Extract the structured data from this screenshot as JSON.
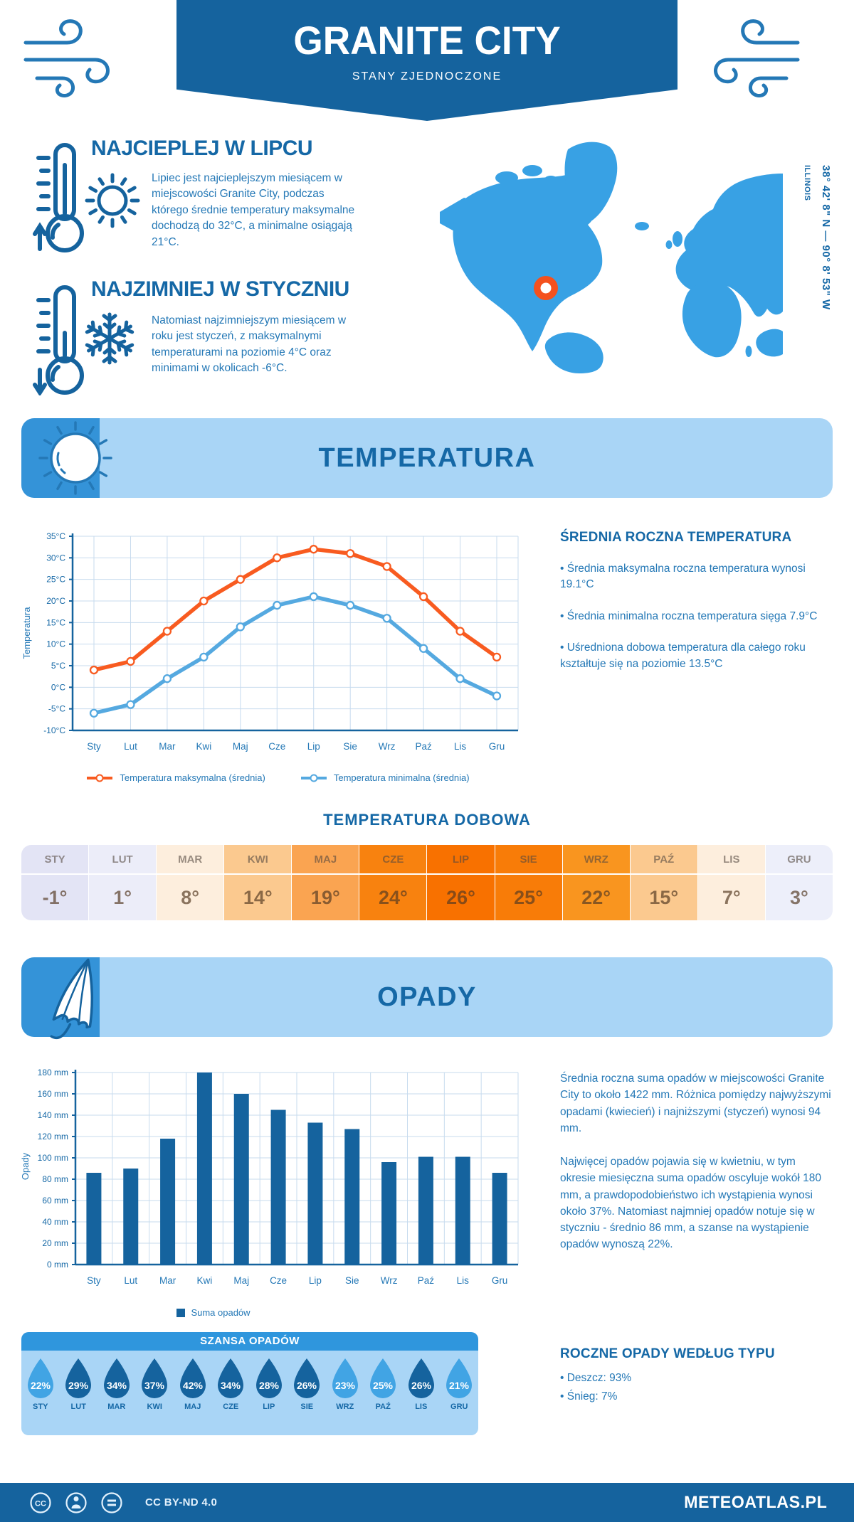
{
  "header": {
    "title": "GRANITE CITY",
    "subtitle": "STANY ZJEDNOCZONE"
  },
  "intro": {
    "hot": {
      "heading": "NAJCIEPLEJ W LIPCU",
      "text": "Lipiec jest najcieplejszym miesiącem w miejscowości Granite City, podczas którego średnie temperatury maksymalne dochodzą do 32°C, a minimalne osiągają 21°C."
    },
    "cold": {
      "heading": "NAJZIMNIEJ W STYCZNIU",
      "text": "Natomiast najzimniejszym miesiącem w roku jest styczeń, z maksymalnymi temperaturami na poziomie 4°C oraz minimami w okolicach -6°C."
    },
    "map": {
      "coordinates": "38° 42' 8\" N — 90° 8' 53\" W",
      "region": "ILLINOIS"
    }
  },
  "temperature_section": {
    "banner_title": "TEMPERATURA",
    "summary": {
      "heading": "ŚREDNIA ROCZNA TEMPERATURA",
      "bullets": [
        "• Średnia maksymalna roczna temperatura wynosi 19.1°C",
        "• Średnia minimalna roczna temperatura sięga 7.9°C",
        "• Uśredniona dobowa temperatura dla całego roku kształtuje się na poziomie 13.5°C"
      ]
    },
    "daily": {
      "title": "TEMPERATURA DOBOWA",
      "colors": [
        "#e3e4f5",
        "#ecedf9",
        "#fdeedd",
        "#fbc98f",
        "#faa451",
        "#f8820f",
        "#f87100",
        "#f87c08",
        "#f9951f",
        "#fbc98f",
        "#fdeedd",
        "#edeffa"
      ]
    }
  },
  "precipitation_section": {
    "banner_title": "OPADY",
    "paragraphs": [
      "Średnia roczna suma opadów w miejscowości Granite City to około 1422 mm. Różnica pomiędzy najwyższymi opadami (kwiecień) i najniższymi (styczeń) wynosi 94 mm.",
      "Najwięcej opadów pojawia się w kwietniu, w tym okresie miesięczna suma opadów oscyluje wokół 180 mm, a prawdopodobieństwo ich wystąpienia wynosi około 37%. Natomiast najmniej opadów notuje się w styczniu - średnio 86 mm, a szanse na wystąpienie opadów wynoszą 22%."
    ],
    "chance": {
      "title": "SZANSA OPADÓW",
      "items": [
        {
          "month": "STY",
          "percent": "22%",
          "tone": "light"
        },
        {
          "month": "LUT",
          "percent": "29%",
          "tone": "dark"
        },
        {
          "month": "MAR",
          "percent": "34%",
          "tone": "dark"
        },
        {
          "month": "KWI",
          "percent": "37%",
          "tone": "dark"
        },
        {
          "month": "MAJ",
          "percent": "42%",
          "tone": "dark"
        },
        {
          "month": "CZE",
          "percent": "34%",
          "tone": "dark"
        },
        {
          "month": "LIP",
          "percent": "28%",
          "tone": "dark"
        },
        {
          "month": "SIE",
          "percent": "26%",
          "tone": "dark"
        },
        {
          "month": "WRZ",
          "percent": "23%",
          "tone": "light"
        },
        {
          "month": "PAŹ",
          "percent": "25%",
          "tone": "light"
        },
        {
          "month": "LIS",
          "percent": "26%",
          "tone": "dark"
        },
        {
          "month": "GRU",
          "percent": "21%",
          "tone": "light"
        }
      ]
    },
    "by_type": {
      "heading": "ROCZNE OPADY WEDŁUG TYPU",
      "bullets": [
        "• Deszcz: 93%",
        "• Śnieg: 7%"
      ]
    }
  },
  "footer": {
    "license": "CC BY-ND 4.0",
    "brand": "METEOATLAS.PL"
  },
  "colors": {
    "primary": "#15639e",
    "heading": "#1568a6",
    "body": "#2478b6",
    "banner_light": "#a9d5f6",
    "banner_square": "#3493d8",
    "szansa_header": "#2f96dd",
    "map_land": "#38a1e4",
    "marker": "#f4511e",
    "grid": "#c7dbee",
    "bar": "#15639e",
    "drop_dark": "#15639e",
    "drop_light": "#41a4e4",
    "line_max": "#f85b20",
    "line_min": "#55a9e0"
  },
  "chart_data": [
    {
      "type": "line",
      "title": "TEMPERATURA",
      "x": [
        "Sty",
        "Lut",
        "Mar",
        "Kwi",
        "Maj",
        "Cze",
        "Lip",
        "Sie",
        "Wrz",
        "Paź",
        "Lis",
        "Gru"
      ],
      "series": [
        {
          "name": "Temperatura maksymalna (średnia)",
          "color": "#f85b20",
          "values": [
            4,
            6,
            13,
            20,
            25,
            30,
            32,
            31,
            28,
            21,
            13,
            7
          ]
        },
        {
          "name": "Temperatura minimalna (średnia)",
          "color": "#55a9e0",
          "values": [
            -6,
            -4,
            2,
            7,
            14,
            19,
            21,
            19,
            16,
            9,
            2,
            -2
          ]
        }
      ],
      "xlabel": "",
      "ylabel": "Temperatura",
      "ylim": [
        -10,
        35
      ],
      "ystep": 5,
      "unit": "°C",
      "grid": true,
      "legend_position": "bottom"
    },
    {
      "type": "bar",
      "title": "OPADY",
      "categories": [
        "Sty",
        "Lut",
        "Mar",
        "Kwi",
        "Maj",
        "Cze",
        "Lip",
        "Sie",
        "Wrz",
        "Paź",
        "Lis",
        "Gru"
      ],
      "values": [
        86,
        90,
        118,
        180,
        160,
        145,
        133,
        127,
        96,
        101,
        101,
        86
      ],
      "bar_color": "#15639e",
      "legend": "Suma opadów",
      "xlabel": "",
      "ylabel": "Opady",
      "ylim": [
        0,
        180
      ],
      "ystep": 20,
      "unit": "mm",
      "grid": true
    },
    {
      "type": "table",
      "title": "TEMPERATURA DOBOWA",
      "categories": [
        "STY",
        "LUT",
        "MAR",
        "KWI",
        "MAJ",
        "CZE",
        "LIP",
        "SIE",
        "WRZ",
        "PAŹ",
        "LIS",
        "GRU"
      ],
      "values": [
        -1,
        1,
        8,
        14,
        19,
        24,
        26,
        25,
        22,
        15,
        7,
        3
      ],
      "unit": "°"
    },
    {
      "type": "table",
      "title": "SZANSA OPADÓW",
      "categories": [
        "STY",
        "LUT",
        "MAR",
        "KWI",
        "MAJ",
        "CZE",
        "LIP",
        "SIE",
        "WRZ",
        "PAŹ",
        "LIS",
        "GRU"
      ],
      "values": [
        22,
        29,
        34,
        37,
        42,
        34,
        28,
        26,
        23,
        25,
        26,
        21
      ],
      "unit": "%"
    }
  ]
}
